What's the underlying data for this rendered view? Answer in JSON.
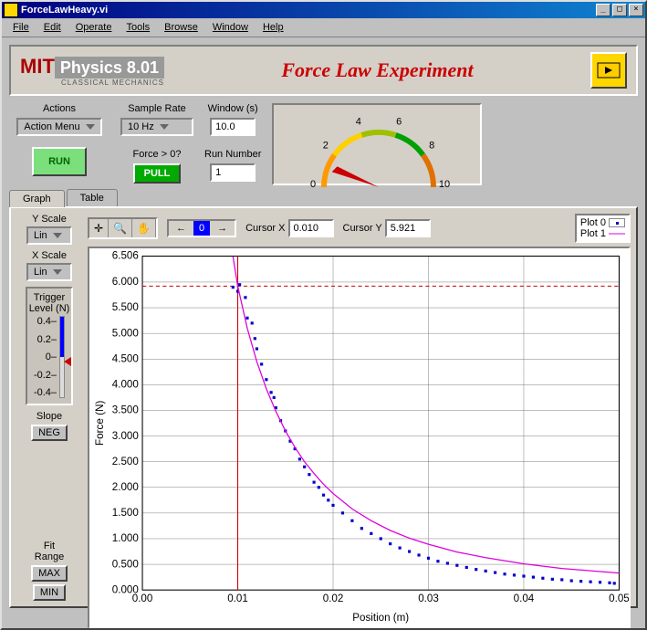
{
  "window": {
    "title": "ForceLawHeavy.vi"
  },
  "menu": [
    "File",
    "Edit",
    "Operate",
    "Tools",
    "Browse",
    "Window",
    "Help"
  ],
  "banner": {
    "mit_red": "MIT",
    "physics": "Physics 8.01",
    "sub": "CLASSICAL MECHANICS",
    "title": "Force Law Experiment"
  },
  "controls": {
    "actions_label": "Actions",
    "actions_value": "Action Menu",
    "run": "RUN",
    "sample_label": "Sample Rate",
    "sample_value": "10 Hz",
    "force_label": "Force > 0?",
    "force_btn": "PULL",
    "window_label": "Window (s)",
    "window_value": "10.0",
    "runnum_label": "Run Number",
    "runnum_value": "1"
  },
  "gauge": {
    "ticks": [
      "0",
      "2",
      "4",
      "6",
      "8",
      "10"
    ],
    "colors": [
      "#ff9900",
      "#ffd000",
      "#9ec000",
      "#00a000",
      "#e07000",
      "#d00000"
    ]
  },
  "tabs": {
    "graph": "Graph",
    "table": "Table"
  },
  "left": {
    "yscale": "Y Scale",
    "xscale": "X Scale",
    "lin": "Lin",
    "trigger": "Trigger\nLevel (N)",
    "trigger_ticks": [
      "0.4",
      "0.2",
      "0",
      "-0.2",
      "-0.4"
    ],
    "slope": "Slope",
    "neg": "NEG",
    "fit": "Fit\nRange",
    "max": "MAX",
    "min": "MIN"
  },
  "toolbar": {
    "cursor_x_label": "Cursor X",
    "cursor_x": "0.010",
    "cursor_y_label": "Cursor Y",
    "cursor_y": "5.921",
    "nav_idx": "0",
    "plot0": "Plot 0",
    "plot1": "Plot 1"
  },
  "chart": {
    "type": "scatter+line",
    "xlabel": "Position (m)",
    "ylabel": "Force (N)",
    "xlim": [
      0.0,
      0.05
    ],
    "ylim": [
      0.0,
      6.506
    ],
    "xticks": [
      "0.00",
      "0.01",
      "0.02",
      "0.03",
      "0.04",
      "0.05"
    ],
    "yticks": [
      "0.000",
      "0.500",
      "1.000",
      "1.500",
      "2.000",
      "2.500",
      "3.000",
      "3.500",
      "4.000",
      "4.500",
      "5.000",
      "5.500",
      "6.000",
      "6.506"
    ],
    "grid_color": "#666666",
    "background_color": "#ffffff",
    "cursor_line_color": "#cc0000",
    "cursor_dash": "4,3",
    "cursor_x_val": 0.01,
    "cursor_y_val": 5.921,
    "series": [
      {
        "name": "Plot 0",
        "type": "scatter",
        "marker": "square",
        "marker_size": 3,
        "color": "#0000cc",
        "x": [
          0.0095,
          0.01,
          0.0102,
          0.0108,
          0.011,
          0.0115,
          0.0118,
          0.012,
          0.0125,
          0.013,
          0.0135,
          0.0138,
          0.014,
          0.0145,
          0.015,
          0.0155,
          0.016,
          0.0165,
          0.017,
          0.0175,
          0.018,
          0.0185,
          0.019,
          0.0195,
          0.02,
          0.021,
          0.022,
          0.023,
          0.024,
          0.025,
          0.026,
          0.027,
          0.028,
          0.029,
          0.03,
          0.031,
          0.032,
          0.033,
          0.034,
          0.035,
          0.036,
          0.037,
          0.038,
          0.039,
          0.04,
          0.041,
          0.042,
          0.043,
          0.044,
          0.045,
          0.046,
          0.047,
          0.048,
          0.049,
          0.0495
        ],
        "y": [
          5.9,
          5.82,
          5.95,
          5.7,
          5.3,
          5.2,
          4.9,
          4.7,
          4.4,
          4.1,
          3.85,
          3.75,
          3.55,
          3.3,
          3.1,
          2.9,
          2.75,
          2.55,
          2.4,
          2.25,
          2.1,
          2.0,
          1.85,
          1.75,
          1.65,
          1.5,
          1.35,
          1.2,
          1.1,
          1.0,
          0.9,
          0.82,
          0.75,
          0.68,
          0.62,
          0.56,
          0.52,
          0.48,
          0.44,
          0.4,
          0.37,
          0.34,
          0.31,
          0.29,
          0.27,
          0.25,
          0.23,
          0.21,
          0.2,
          0.18,
          0.17,
          0.16,
          0.15,
          0.14,
          0.13
        ]
      },
      {
        "name": "Plot 1",
        "type": "line",
        "color": "#dd00dd",
        "line_width": 1.2,
        "x": [
          0.0095,
          0.01,
          0.011,
          0.012,
          0.013,
          0.014,
          0.015,
          0.016,
          0.017,
          0.018,
          0.019,
          0.02,
          0.022,
          0.024,
          0.026,
          0.028,
          0.03,
          0.033,
          0.036,
          0.04,
          0.044,
          0.048,
          0.05
        ],
        "y": [
          6.5,
          5.92,
          5.1,
          4.45,
          3.92,
          3.48,
          3.1,
          2.78,
          2.5,
          2.27,
          2.06,
          1.88,
          1.58,
          1.35,
          1.16,
          1.01,
          0.89,
          0.74,
          0.63,
          0.51,
          0.42,
          0.36,
          0.33
        ]
      }
    ]
  },
  "label_fontsize": 10,
  "tick_fontsize": 9
}
